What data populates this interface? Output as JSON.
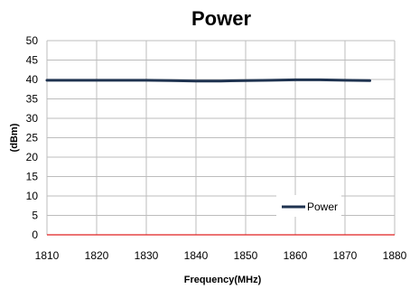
{
  "chart_data": {
    "type": "line",
    "title": "Power",
    "xlabel": "Frequency(MHz)",
    "ylabel": "(dBm)",
    "xlim": [
      1810,
      1880
    ],
    "ylim": [
      0,
      50
    ],
    "x_ticks": [
      1810,
      1820,
      1830,
      1840,
      1850,
      1860,
      1870,
      1880
    ],
    "y_ticks": [
      0,
      5,
      10,
      15,
      20,
      25,
      30,
      35,
      40,
      45,
      50
    ],
    "grid": true,
    "legend_position": "bottom-right",
    "series": [
      {
        "name": "Power",
        "color": "#1f3350",
        "x": [
          1810,
          1815,
          1820,
          1825,
          1830,
          1835,
          1840,
          1845,
          1850,
          1855,
          1860,
          1865,
          1870,
          1875
        ],
        "values": [
          39.8,
          39.8,
          39.8,
          39.8,
          39.8,
          39.7,
          39.6,
          39.6,
          39.7,
          39.8,
          39.9,
          39.9,
          39.8,
          39.7
        ]
      }
    ],
    "x_axis_color": "#e02020"
  }
}
